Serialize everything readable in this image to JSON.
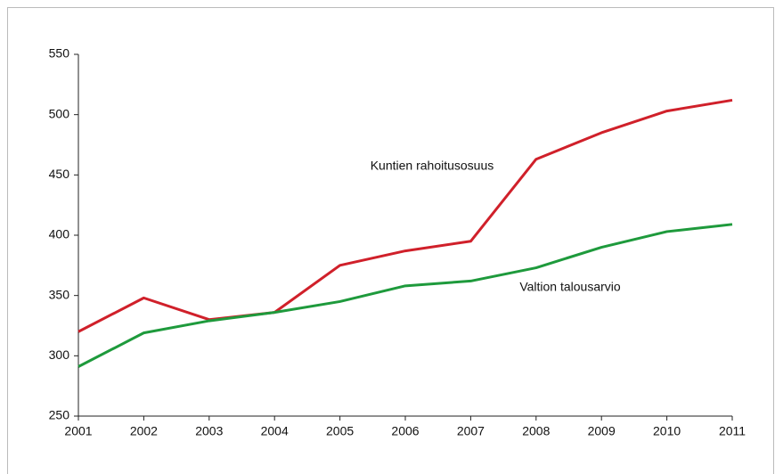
{
  "chart_data": {
    "type": "line",
    "x": [
      2001,
      2002,
      2003,
      2004,
      2005,
      2006,
      2007,
      2008,
      2009,
      2010,
      2011
    ],
    "xlim": [
      2001,
      2011
    ],
    "xticks": [
      2001,
      2002,
      2003,
      2004,
      2005,
      2006,
      2007,
      2008,
      2009,
      2010,
      2011
    ],
    "ylim": [
      250,
      550
    ],
    "yticks": [
      250,
      300,
      350,
      400,
      450,
      500,
      550
    ],
    "grid": false,
    "series": [
      {
        "name": "Kuntien rahoitusosuus",
        "color": "#d0202a",
        "values": [
          320,
          348,
          330,
          336,
          375,
          387,
          395,
          463,
          485,
          503,
          512
        ]
      },
      {
        "name": "Valtion talousarvio",
        "color": "#1e9a3c",
        "values": [
          291,
          319,
          329,
          336,
          345,
          358,
          362,
          373,
          390,
          403,
          409
        ]
      }
    ]
  }
}
